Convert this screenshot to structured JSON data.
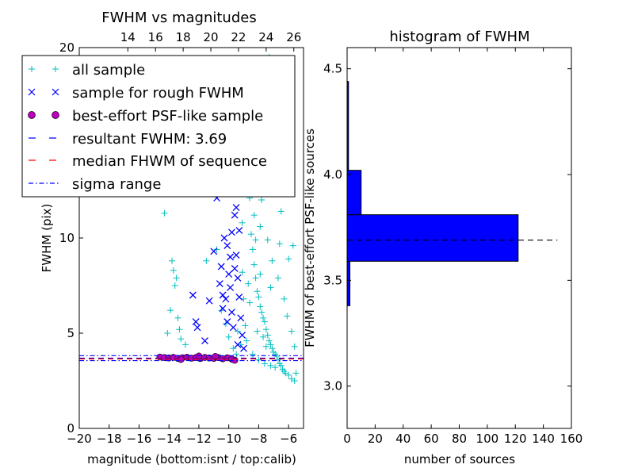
{
  "chart_data": [
    {
      "type": "scatter",
      "title": "FWHM vs magnitudes",
      "xlabel": "magnitude (bottom:isnt / top:calib)",
      "ylabel": "FWHM (pix)",
      "xlim": [
        -20,
        -5
      ],
      "ylim": [
        0,
        20
      ],
      "x_ticks": [
        "−20",
        "−18",
        "−16",
        "−14",
        "−12",
        "−10",
        "−8",
        "−6"
      ],
      "x_tick_values": [
        -20,
        -18,
        -16,
        -14,
        -12,
        -10,
        -8,
        -6
      ],
      "y_ticks": [
        "0",
        "5",
        "10",
        "15",
        "20"
      ],
      "y_tick_values": [
        0,
        5,
        10,
        15,
        20
      ],
      "top_axis_ticks": [
        "14",
        "16",
        "18",
        "20",
        "22",
        "24",
        "26"
      ],
      "top_axis_tick_values": [
        -16.75,
        -14.9,
        -13.05,
        -11.2,
        -9.35,
        -7.5,
        -5.65
      ],
      "legend_placement": "upper-left",
      "legend": [
        {
          "label": "all sample",
          "marker": "+",
          "color": "#00bfbf"
        },
        {
          "label": "sample for rough FWHM",
          "marker": "x",
          "color": "#0000ff"
        },
        {
          "label": "best-effort PSF-like sample",
          "marker": "o",
          "color": "#bf00bf"
        },
        {
          "label": "resultant FWHM: 3.69",
          "marker": "dashed",
          "color": "#0000ff"
        },
        {
          "label": "median FHWM of sequence",
          "marker": "dashed",
          "color": "#ff0000"
        },
        {
          "label": "sigma range",
          "marker": "dashdot",
          "color": "#0000ff"
        }
      ],
      "series": [
        {
          "name": "all sample",
          "color": "#00bfbf",
          "points": [
            [
              -14.3,
              11.3
            ],
            [
              -13.8,
              8.8
            ],
            [
              -13.7,
              8.3
            ],
            [
              -13.6,
              7.5
            ],
            [
              -13.5,
              7.9
            ],
            [
              -13.9,
              6.2
            ],
            [
              -13.4,
              5.8
            ],
            [
              -13.3,
              5.2
            ],
            [
              -14.1,
              5.0
            ],
            [
              -13.2,
              4.7
            ],
            [
              -12.9,
              4.4
            ],
            [
              -12.4,
              12.6
            ],
            [
              -11.5,
              8.8
            ],
            [
              -10.8,
              9.4
            ],
            [
              -10.5,
              6.2
            ],
            [
              -10.2,
              5.5
            ],
            [
              -10.0,
              4.8
            ],
            [
              -9.7,
              4.2
            ],
            [
              -9.5,
              3.9
            ],
            [
              -9.3,
              14.0
            ],
            [
              -9.1,
              8.2
            ],
            [
              -9.0,
              6.8
            ],
            [
              -8.9,
              5.4
            ],
            [
              -8.8,
              4.6
            ],
            [
              -8.7,
              13.5
            ],
            [
              -8.6,
              12.1
            ],
            [
              -8.5,
              10.2
            ],
            [
              -8.4,
              9.4
            ],
            [
              -8.3,
              8.6
            ],
            [
              -8.2,
              7.9
            ],
            [
              -8.1,
              7.2
            ],
            [
              -8.0,
              6.9
            ],
            [
              -7.9,
              6.4
            ],
            [
              -7.8,
              6.1
            ],
            [
              -7.7,
              5.8
            ],
            [
              -7.6,
              5.6
            ],
            [
              -7.5,
              5.2
            ],
            [
              -7.4,
              4.9
            ],
            [
              -7.3,
              4.6
            ],
            [
              -7.2,
              4.4
            ],
            [
              -7.1,
              4.2
            ],
            [
              -7.0,
              4.0
            ],
            [
              -6.9,
              3.9
            ],
            [
              -6.8,
              3.8
            ],
            [
              -6.7,
              3.6
            ],
            [
              -6.6,
              3.4
            ],
            [
              -6.5,
              3.3
            ],
            [
              -6.4,
              3.1
            ],
            [
              -6.3,
              3.0
            ],
            [
              -6.2,
              2.9
            ],
            [
              -6.0,
              2.8
            ],
            [
              -5.8,
              2.6
            ],
            [
              -5.6,
              2.5
            ],
            [
              -5.5,
              2.9
            ],
            [
              -8.5,
              15.8
            ],
            [
              -8.0,
              17.2
            ],
            [
              -7.6,
              19.0
            ],
            [
              -7.3,
              19.5
            ],
            [
              -6.8,
              18.3
            ],
            [
              -6.2,
              16.2
            ],
            [
              -5.9,
              12.4
            ],
            [
              -5.7,
              9.6
            ],
            [
              -7.0,
              13.2
            ],
            [
              -6.5,
              11.4
            ],
            [
              -6.0,
              8.9
            ],
            [
              -8.3,
              11.2
            ],
            [
              -7.9,
              10.6
            ],
            [
              -7.4,
              9.9
            ],
            [
              -7.1,
              8.8
            ],
            [
              -6.7,
              7.9
            ],
            [
              -6.3,
              6.8
            ],
            [
              -6.1,
              5.9
            ],
            [
              -5.8,
              5.1
            ],
            [
              -5.6,
              4.3
            ],
            [
              -8.1,
              5.1
            ],
            [
              -7.7,
              4.8
            ],
            [
              -7.5,
              4.3
            ],
            [
              -8.4,
              3.9
            ],
            [
              -8.0,
              3.6
            ],
            [
              -7.6,
              3.4
            ],
            [
              -7.2,
              3.3
            ],
            [
              -6.9,
              3.2
            ],
            [
              -9.2,
              4.4
            ],
            [
              -9.4,
              5.1
            ],
            [
              -8.6,
              6.6
            ],
            [
              -8.2,
              9.9
            ],
            [
              -7.8,
              12.0
            ],
            [
              -7.4,
              14.4
            ],
            [
              -6.9,
              16.5
            ],
            [
              -6.4,
              14.1
            ],
            [
              -6.6,
              9.7
            ],
            [
              -7.2,
              7.4
            ],
            [
              -7.9,
              8.1
            ],
            [
              -8.7,
              7.6
            ],
            [
              -9.1,
              10.8
            ],
            [
              -8.8,
              12.9
            ],
            [
              -8.3,
              14.9
            ],
            [
              -7.5,
              17.6
            ]
          ]
        },
        {
          "name": "sample for rough FWHM",
          "color": "#0000ff",
          "points": [
            [
              -12.4,
              7.0
            ],
            [
              -12.2,
              5.6
            ],
            [
              -12.1,
              5.3
            ],
            [
              -11.6,
              4.6
            ],
            [
              -11.3,
              6.7
            ],
            [
              -11.0,
              9.3
            ],
            [
              -10.8,
              12.1
            ],
            [
              -10.6,
              7.6
            ],
            [
              -10.5,
              8.5
            ],
            [
              -10.4,
              6.3
            ],
            [
              -10.3,
              10.0
            ],
            [
              -10.2,
              12.6
            ],
            [
              -10.1,
              9.6
            ],
            [
              -10.0,
              8.1
            ],
            [
              -9.9,
              7.4
            ],
            [
              -9.8,
              6.1
            ],
            [
              -9.7,
              5.3
            ],
            [
              -9.6,
              11.2
            ],
            [
              -9.5,
              9.1
            ],
            [
              -9.4,
              7.9
            ],
            [
              -9.3,
              6.9
            ],
            [
              -9.2,
              5.8
            ],
            [
              -9.1,
              4.9
            ],
            [
              -9.0,
              4.2
            ],
            [
              -9.7,
              13.2
            ],
            [
              -9.5,
              11.6
            ],
            [
              -9.2,
              12.4
            ],
            [
              -9.8,
              10.3
            ],
            [
              -10.1,
              5.6
            ],
            [
              -9.4,
              4.4
            ],
            [
              -10.4,
              7.0
            ],
            [
              -9.6,
              8.4
            ],
            [
              -9.3,
              10.4
            ],
            [
              -9.9,
              9.0
            ],
            [
              -10.2,
              6.8
            ]
          ]
        },
        {
          "name": "best-effort PSF-like sample",
          "color": "#bf00bf",
          "points": [
            [
              -14.6,
              3.75
            ],
            [
              -14.3,
              3.72
            ],
            [
              -14.0,
              3.7
            ],
            [
              -13.7,
              3.73
            ],
            [
              -13.4,
              3.68
            ],
            [
              -13.1,
              3.71
            ],
            [
              -12.8,
              3.74
            ],
            [
              -12.5,
              3.69
            ],
            [
              -12.2,
              3.72
            ],
            [
              -11.9,
              3.67
            ],
            [
              -11.6,
              3.73
            ],
            [
              -11.3,
              3.7
            ],
            [
              -11.0,
              3.68
            ],
            [
              -10.7,
              3.72
            ],
            [
              -10.4,
              3.66
            ],
            [
              -10.1,
              3.71
            ],
            [
              -9.8,
              3.64
            ],
            [
              -9.6,
              3.58
            ],
            [
              -13.2,
              3.62
            ],
            [
              -12.0,
              3.8
            ],
            [
              -10.9,
              3.78
            ]
          ]
        }
      ],
      "lines": [
        {
          "label": "resultant FWHM: 3.69",
          "y": 3.69,
          "style": "dashed",
          "color": "#0000ff"
        },
        {
          "label": "median FHWM of sequence",
          "y": 3.65,
          "style": "dashed",
          "color": "#ff0000"
        },
        {
          "label": "sigma range",
          "y": 3.82,
          "style": "dashdot",
          "color": "#0000ff"
        },
        {
          "label": "sigma range",
          "y": 3.56,
          "style": "dashdot",
          "color": "#0000ff"
        }
      ]
    },
    {
      "type": "bar",
      "orientation": "horizontal",
      "title": "histogram of FWHM",
      "xlabel": "number of sources",
      "ylabel": "FWHM of best-effort PSF-like sources",
      "xlim": [
        0,
        160
      ],
      "ylim": [
        2.8,
        4.6
      ],
      "x_ticks": [
        "0",
        "20",
        "40",
        "60",
        "80",
        "100",
        "120",
        "140",
        "160"
      ],
      "x_tick_values": [
        0,
        20,
        40,
        60,
        80,
        100,
        120,
        140,
        160
      ],
      "y_ticks": [
        "3.0",
        "3.5",
        "4.0",
        "4.5"
      ],
      "y_tick_values": [
        3.0,
        3.5,
        4.0,
        4.5
      ],
      "bar_color": "#0000ff",
      "bins": [
        {
          "low": 3.38,
          "high": 3.59,
          "count": 2
        },
        {
          "low": 3.59,
          "high": 3.81,
          "count": 122
        },
        {
          "low": 3.81,
          "high": 4.02,
          "count": 10
        },
        {
          "low": 4.02,
          "high": 4.44,
          "count": 1
        }
      ],
      "reference_line": {
        "y": 3.69,
        "style": "dashed",
        "color": "#000000",
        "x_extent": [
          0,
          150
        ]
      }
    }
  ]
}
